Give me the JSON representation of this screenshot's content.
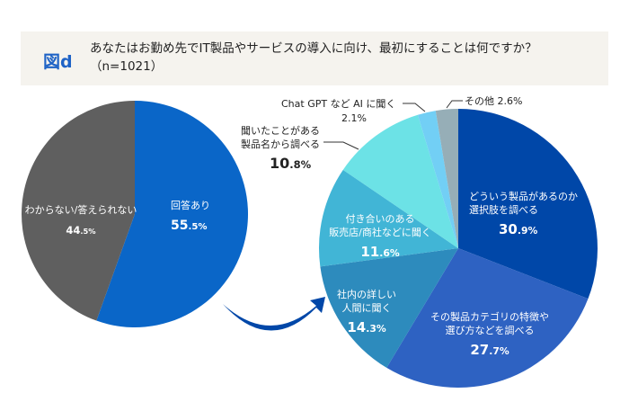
{
  "header": {
    "figure_label": "図d",
    "question": "あなたはお勤め先でIT製品やサービスの導入に向け、最初にすることは何ですか？",
    "sample": "（n=1021）"
  },
  "chart_data": [
    {
      "type": "pie",
      "slices": [
        {
          "label": "回答あり",
          "value": 55.5,
          "color": "#0a66c8",
          "text_color": "#ffffff"
        },
        {
          "label": "わからない/答えられない",
          "value": 44.5,
          "color": "#5f5f5f",
          "text_color": "#ffffff"
        }
      ]
    },
    {
      "type": "pie",
      "slices": [
        {
          "label": "どういう製品があるのか\n選択肢を調べる",
          "value": 30.9,
          "color": "#0047a8",
          "text_color": "#ffffff"
        },
        {
          "label": "その製品カテゴリの特徴や\n選び方などを調べる",
          "value": 27.7,
          "color": "#2e62c2",
          "text_color": "#ffffff"
        },
        {
          "label": "社内の詳しい\n人間に聞く",
          "value": 14.3,
          "color": "#2d8bbd",
          "text_color": "#ffffff"
        },
        {
          "label": "付き合いのある\n販売店/商社などに聞く",
          "value": 11.6,
          "color": "#41b5d6",
          "text_color": "#ffffff"
        },
        {
          "label": "聞いたことがある\n製品名から調べる",
          "value": 10.8,
          "color": "#6ce2e6",
          "text_color": "#222222"
        },
        {
          "label": "Chat GPT など AI に聞く",
          "value": 2.1,
          "color": "#72cff5",
          "text_color": "#222222"
        },
        {
          "label": "その他",
          "value": 2.6,
          "color": "#96aeb7",
          "text_color": "#222222"
        }
      ]
    }
  ]
}
